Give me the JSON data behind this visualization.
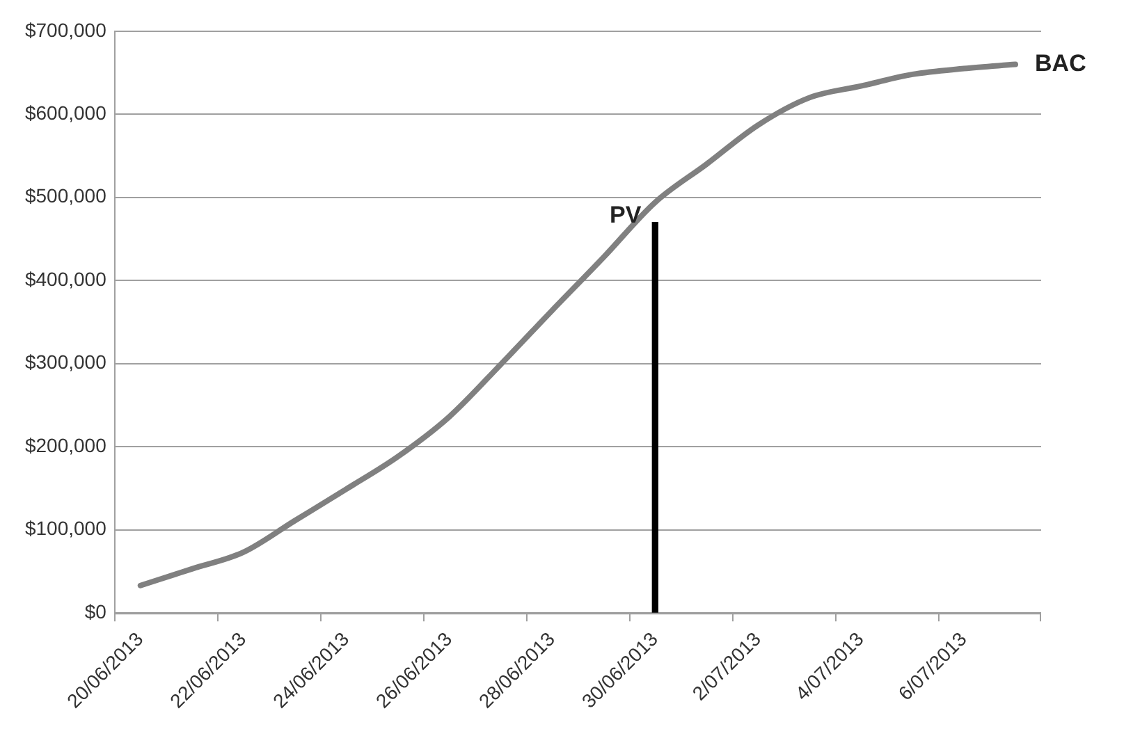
{
  "chart_data": {
    "type": "line",
    "categories": [
      "20/06/2013",
      null,
      "22/06/2013",
      null,
      "24/06/2013",
      null,
      "26/06/2013",
      null,
      "28/06/2013",
      null,
      "30/06/2013",
      null,
      "2/07/2013",
      null,
      "4/07/2013",
      null,
      "6/07/2013",
      null
    ],
    "series": [
      {
        "name": "BAC",
        "color": "#808080",
        "values": [
          33000,
          53000,
          73000,
          111000,
          149000,
          188000,
          236000,
          299000,
          364000,
          428000,
          494000,
          540000,
          587000,
          620000,
          634000,
          648000,
          655000,
          660000
        ]
      },
      {
        "name": "PV",
        "type": "bar",
        "color": "#000000",
        "values": [
          null,
          null,
          null,
          null,
          null,
          null,
          null,
          null,
          null,
          null,
          470000,
          null,
          null,
          null,
          null,
          null,
          null,
          null
        ]
      }
    ],
    "ylim": [
      0,
      700000
    ],
    "yticks": [
      {
        "value": 0,
        "label": "$0"
      },
      {
        "value": 100000,
        "label": "$100,000"
      },
      {
        "value": 200000,
        "label": "$200,000"
      },
      {
        "value": 300000,
        "label": "$300,000"
      },
      {
        "value": 400000,
        "label": "$400,000"
      },
      {
        "value": 500000,
        "label": "$500,000"
      },
      {
        "value": 600000,
        "label": "$600,000"
      },
      {
        "value": 700000,
        "label": "$700,000"
      }
    ],
    "grid": "y",
    "legend": false,
    "marker": "none",
    "line_style": "solid"
  }
}
